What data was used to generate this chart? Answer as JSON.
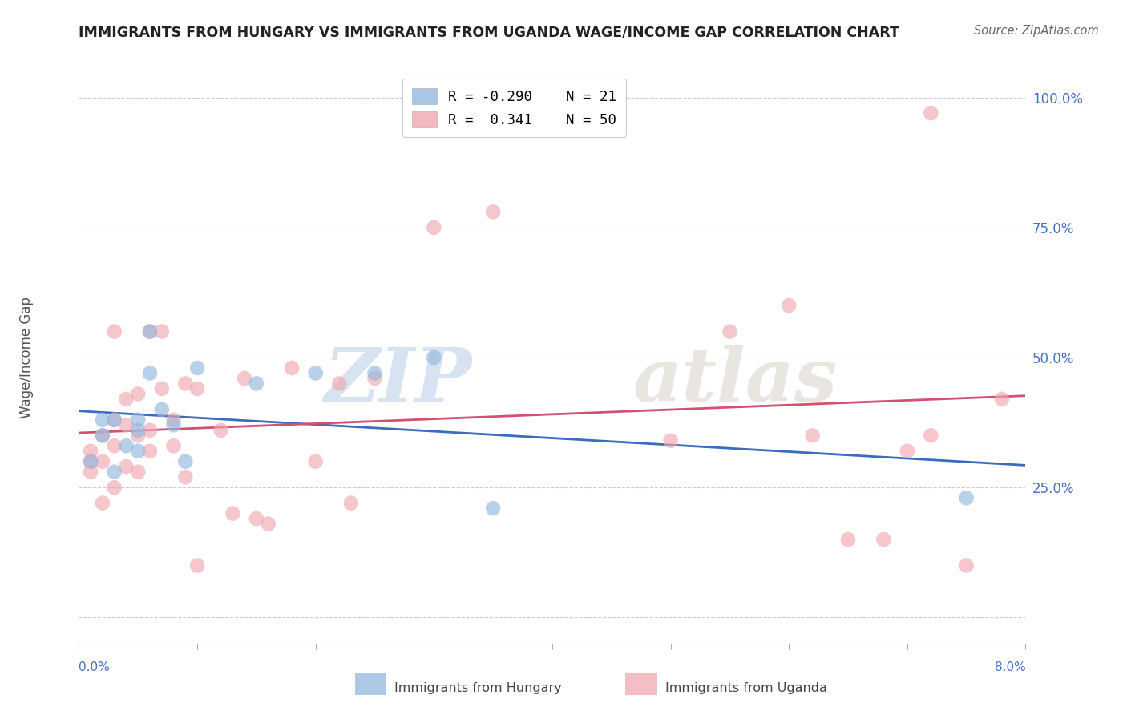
{
  "title": "IMMIGRANTS FROM HUNGARY VS IMMIGRANTS FROM UGANDA WAGE/INCOME GAP CORRELATION CHART",
  "source": "Source: ZipAtlas.com",
  "ylabel": "Wage/Income Gap",
  "yticks": [
    0.0,
    0.25,
    0.5,
    0.75,
    1.0
  ],
  "ytick_labels": [
    "",
    "25.0%",
    "50.0%",
    "75.0%",
    "100.0%"
  ],
  "xlim": [
    0.0,
    0.08
  ],
  "ylim": [
    -0.05,
    1.05
  ],
  "r_hungary": -0.29,
  "n_hungary": 21,
  "r_uganda": 0.341,
  "n_uganda": 50,
  "color_hungary": "#92b8e0",
  "color_uganda": "#f0a8b0",
  "trendline_hungary": "#3a6bbf",
  "trendline_uganda": "#d45070",
  "watermark_zip": "ZIP",
  "watermark_atlas": "atlas",
  "legend_label_hungary": "Immigrants from Hungary",
  "legend_label_uganda": "Immigrants from Uganda",
  "hungary_x": [
    0.001,
    0.002,
    0.002,
    0.003,
    0.003,
    0.004,
    0.005,
    0.005,
    0.005,
    0.006,
    0.006,
    0.007,
    0.008,
    0.009,
    0.01,
    0.015,
    0.02,
    0.025,
    0.03,
    0.035,
    0.075
  ],
  "hungary_y": [
    0.3,
    0.35,
    0.38,
    0.28,
    0.38,
    0.33,
    0.32,
    0.36,
    0.38,
    0.55,
    0.47,
    0.4,
    0.37,
    0.3,
    0.48,
    0.45,
    0.47,
    0.47,
    0.5,
    0.21,
    0.23
  ],
  "uganda_x": [
    0.001,
    0.001,
    0.001,
    0.002,
    0.002,
    0.002,
    0.003,
    0.003,
    0.003,
    0.003,
    0.004,
    0.004,
    0.004,
    0.005,
    0.005,
    0.005,
    0.006,
    0.006,
    0.006,
    0.007,
    0.007,
    0.008,
    0.008,
    0.009,
    0.009,
    0.01,
    0.01,
    0.012,
    0.013,
    0.014,
    0.015,
    0.016,
    0.018,
    0.02,
    0.022,
    0.023,
    0.025,
    0.03,
    0.035,
    0.05,
    0.055,
    0.06,
    0.062,
    0.065,
    0.068,
    0.07,
    0.072,
    0.075,
    0.078,
    0.072
  ],
  "uganda_y": [
    0.28,
    0.32,
    0.3,
    0.35,
    0.22,
    0.3,
    0.33,
    0.38,
    0.25,
    0.55,
    0.37,
    0.42,
    0.29,
    0.35,
    0.28,
    0.43,
    0.32,
    0.36,
    0.55,
    0.44,
    0.55,
    0.38,
    0.33,
    0.45,
    0.27,
    0.44,
    0.1,
    0.36,
    0.2,
    0.46,
    0.19,
    0.18,
    0.48,
    0.3,
    0.45,
    0.22,
    0.46,
    0.75,
    0.78,
    0.34,
    0.55,
    0.6,
    0.35,
    0.15,
    0.15,
    0.32,
    0.35,
    0.1,
    0.42,
    0.97
  ]
}
